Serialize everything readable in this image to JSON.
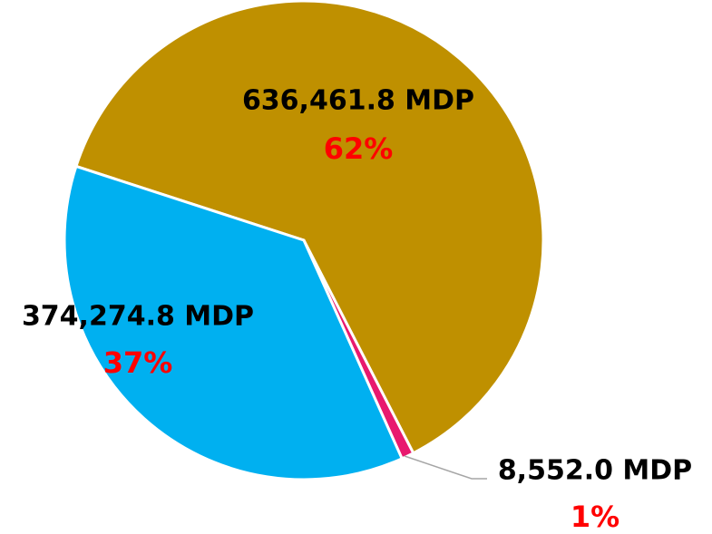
{
  "chart_data": {
    "type": "pie",
    "categories": [
      null,
      null,
      null
    ],
    "values": [
      636461.8,
      8552.0,
      374274.8
    ],
    "value_labels": [
      "636,461.8 MDP",
      "8,552.0 MDP",
      "374,274.8 MDP"
    ],
    "percents": [
      62,
      1,
      37
    ],
    "percent_labels": [
      "62%",
      "1%",
      "37%"
    ],
    "colors": [
      "#bf9000",
      "#e8196e",
      "#00b0f0"
    ]
  }
}
